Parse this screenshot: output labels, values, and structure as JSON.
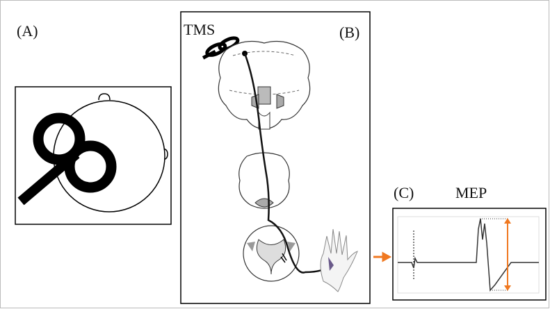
{
  "labels": {
    "a": "(A)",
    "tms": "TMS",
    "b": "(B)",
    "c": "(C)",
    "mep": "MEP"
  }
}
